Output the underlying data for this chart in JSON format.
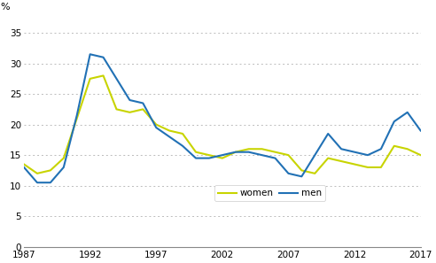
{
  "years": [
    1987,
    1988,
    1989,
    1990,
    1991,
    1992,
    1993,
    1994,
    1995,
    1996,
    1997,
    1998,
    1999,
    2000,
    2001,
    2002,
    2003,
    2004,
    2005,
    2006,
    2007,
    2008,
    2009,
    2010,
    2011,
    2012,
    2013,
    2014,
    2015,
    2016,
    2017
  ],
  "women": [
    13.5,
    12.0,
    12.5,
    14.5,
    21.0,
    27.5,
    28.0,
    22.5,
    22.0,
    22.5,
    20.0,
    19.0,
    18.5,
    15.5,
    15.0,
    14.5,
    15.5,
    16.0,
    16.0,
    15.5,
    15.0,
    12.5,
    12.0,
    14.5,
    14.0,
    13.5,
    13.0,
    13.0,
    16.5,
    16.0,
    15.0
  ],
  "men": [
    13.0,
    10.5,
    10.5,
    13.0,
    21.5,
    31.5,
    31.0,
    27.5,
    24.0,
    23.5,
    19.5,
    18.0,
    16.5,
    14.5,
    14.5,
    15.0,
    15.5,
    15.5,
    15.0,
    14.5,
    12.0,
    11.5,
    15.0,
    18.5,
    16.0,
    15.5,
    15.0,
    16.0,
    20.5,
    22.0,
    19.0
  ],
  "women_color": "#c8d400",
  "men_color": "#2171b5",
  "background_color": "#ffffff",
  "grid_color": "#bbbbbb",
  "ylabel": "%",
  "ylim": [
    0,
    37
  ],
  "yticks": [
    0,
    5,
    10,
    15,
    20,
    25,
    30,
    35
  ],
  "xlim": [
    1987,
    2017
  ],
  "xticks": [
    1987,
    1992,
    1997,
    2002,
    2007,
    2012,
    2017
  ],
  "legend_labels": [
    "women",
    "men"
  ]
}
